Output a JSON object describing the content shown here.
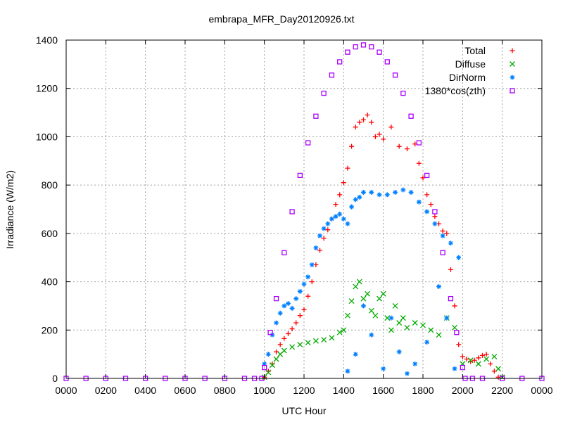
{
  "chart_data": {
    "type": "scatter",
    "title": "embrapa_MFR_Day20120926.txt",
    "xlabel": "UTC Hour",
    "ylabel": "Irradiance (W/m2)",
    "xlim": [
      0,
      24
    ],
    "ylim": [
      0,
      1400
    ],
    "x_ticks": [
      0,
      2,
      4,
      6,
      8,
      10,
      12,
      14,
      16,
      18,
      20,
      22,
      24
    ],
    "x_tick_labels": [
      "0000",
      "0200",
      "0400",
      "0600",
      "0800",
      "1000",
      "1200",
      "1400",
      "1600",
      "1800",
      "2000",
      "2200",
      "0000"
    ],
    "y_ticks": [
      0,
      200,
      400,
      600,
      800,
      1000,
      1200,
      1400
    ],
    "y_tick_labels": [
      "0",
      "200",
      "400",
      "600",
      "800",
      "1000",
      "1200",
      "1400"
    ],
    "grid": true,
    "legend_position": "top-right",
    "series": [
      {
        "name": "Total",
        "marker": "plus",
        "color": "#ff0000",
        "points": [
          [
            10.0,
            5
          ],
          [
            10.2,
            30
          ],
          [
            10.4,
            60
          ],
          [
            10.6,
            110
          ],
          [
            10.8,
            140
          ],
          [
            11.0,
            165
          ],
          [
            11.2,
            185
          ],
          [
            11.4,
            205
          ],
          [
            11.6,
            230
          ],
          [
            11.8,
            260
          ],
          [
            12.0,
            285
          ],
          [
            12.2,
            340
          ],
          [
            12.4,
            400
          ],
          [
            12.6,
            470
          ],
          [
            12.8,
            530
          ],
          [
            13.0,
            580
          ],
          [
            13.2,
            615
          ],
          [
            13.4,
            660
          ],
          [
            13.6,
            720
          ],
          [
            13.8,
            760
          ],
          [
            14.0,
            810
          ],
          [
            14.2,
            870
          ],
          [
            14.4,
            960
          ],
          [
            14.6,
            1040
          ],
          [
            14.8,
            1060
          ],
          [
            15.0,
            1070
          ],
          [
            15.2,
            1090
          ],
          [
            15.4,
            1060
          ],
          [
            15.6,
            1000
          ],
          [
            15.8,
            1010
          ],
          [
            16.0,
            990
          ],
          [
            16.4,
            1040
          ],
          [
            16.8,
            960
          ],
          [
            17.2,
            950
          ],
          [
            17.6,
            970
          ],
          [
            17.8,
            890
          ],
          [
            18.0,
            830
          ],
          [
            18.2,
            760
          ],
          [
            18.4,
            720
          ],
          [
            18.6,
            670
          ],
          [
            18.8,
            640
          ],
          [
            19.0,
            610
          ],
          [
            19.2,
            600
          ],
          [
            19.4,
            450
          ],
          [
            19.6,
            300
          ],
          [
            19.8,
            140
          ],
          [
            20.0,
            90
          ],
          [
            20.2,
            80
          ],
          [
            20.4,
            70
          ],
          [
            20.6,
            75
          ],
          [
            20.8,
            85
          ],
          [
            21.0,
            95
          ],
          [
            21.2,
            100
          ],
          [
            21.4,
            60
          ],
          [
            21.6,
            30
          ],
          [
            21.8,
            5
          ]
        ]
      },
      {
        "name": "Diffuse",
        "marker": "cross",
        "color": "#00aa00",
        "points": [
          [
            10.0,
            5
          ],
          [
            10.2,
            25
          ],
          [
            10.4,
            55
          ],
          [
            10.6,
            80
          ],
          [
            10.8,
            100
          ],
          [
            11.0,
            115
          ],
          [
            11.4,
            130
          ],
          [
            11.8,
            140
          ],
          [
            12.2,
            148
          ],
          [
            12.6,
            155
          ],
          [
            13.0,
            160
          ],
          [
            13.4,
            168
          ],
          [
            13.8,
            190
          ],
          [
            14.0,
            200
          ],
          [
            14.2,
            260
          ],
          [
            14.4,
            320
          ],
          [
            14.6,
            380
          ],
          [
            14.8,
            400
          ],
          [
            15.0,
            330
          ],
          [
            15.2,
            350
          ],
          [
            15.4,
            280
          ],
          [
            15.6,
            260
          ],
          [
            15.8,
            330
          ],
          [
            16.0,
            350
          ],
          [
            16.2,
            250
          ],
          [
            16.4,
            200
          ],
          [
            16.6,
            300
          ],
          [
            16.8,
            230
          ],
          [
            17.0,
            250
          ],
          [
            17.2,
            210
          ],
          [
            17.6,
            230
          ],
          [
            18.0,
            220
          ],
          [
            18.4,
            200
          ],
          [
            18.8,
            180
          ],
          [
            19.2,
            250
          ],
          [
            19.6,
            210
          ],
          [
            20.0,
            60
          ],
          [
            20.4,
            75
          ],
          [
            20.8,
            60
          ],
          [
            21.2,
            80
          ],
          [
            21.6,
            90
          ],
          [
            21.8,
            40
          ],
          [
            22.0,
            5
          ]
        ]
      },
      {
        "name": "DirNorm",
        "marker": "star",
        "color": "#0080ff",
        "points": [
          [
            10.0,
            60
          ],
          [
            10.2,
            100
          ],
          [
            10.4,
            180
          ],
          [
            10.6,
            230
          ],
          [
            10.8,
            270
          ],
          [
            11.0,
            300
          ],
          [
            11.2,
            310
          ],
          [
            11.4,
            290
          ],
          [
            11.6,
            330
          ],
          [
            11.8,
            360
          ],
          [
            12.0,
            390
          ],
          [
            12.2,
            420
          ],
          [
            12.4,
            470
          ],
          [
            12.6,
            540
          ],
          [
            12.8,
            590
          ],
          [
            13.0,
            620
          ],
          [
            13.2,
            640
          ],
          [
            13.4,
            660
          ],
          [
            13.6,
            670
          ],
          [
            13.8,
            680
          ],
          [
            14.0,
            660
          ],
          [
            14.2,
            640
          ],
          [
            14.4,
            710
          ],
          [
            14.6,
            740
          ],
          [
            14.8,
            750
          ],
          [
            15.0,
            770
          ],
          [
            15.4,
            770
          ],
          [
            15.8,
            760
          ],
          [
            16.2,
            760
          ],
          [
            16.6,
            770
          ],
          [
            17.0,
            780
          ],
          [
            17.4,
            770
          ],
          [
            17.8,
            730
          ],
          [
            18.2,
            690
          ],
          [
            18.6,
            640
          ],
          [
            19.0,
            590
          ],
          [
            19.4,
            560
          ],
          [
            19.8,
            500
          ],
          [
            14.2,
            30
          ],
          [
            14.6,
            100
          ],
          [
            15.0,
            300
          ],
          [
            15.4,
            180
          ],
          [
            16.0,
            40
          ],
          [
            16.4,
            250
          ],
          [
            16.8,
            110
          ],
          [
            17.2,
            20
          ],
          [
            17.6,
            60
          ],
          [
            18.2,
            150
          ],
          [
            18.8,
            380
          ],
          [
            19.2,
            250
          ],
          [
            19.6,
            40
          ]
        ]
      },
      {
        "name": "1380*cos(zth)",
        "marker": "square",
        "color": "#aa00ff",
        "points": [
          [
            0.0,
            0
          ],
          [
            1.0,
            0
          ],
          [
            2.0,
            0
          ],
          [
            3.0,
            0
          ],
          [
            4.0,
            0
          ],
          [
            5.0,
            0
          ],
          [
            6.0,
            0
          ],
          [
            7.0,
            0
          ],
          [
            8.0,
            0
          ],
          [
            9.0,
            0
          ],
          [
            9.5,
            0
          ],
          [
            9.87,
            0
          ],
          [
            10.0,
            45
          ],
          [
            10.3,
            190
          ],
          [
            10.6,
            330
          ],
          [
            11.0,
            520
          ],
          [
            11.4,
            690
          ],
          [
            11.8,
            840
          ],
          [
            12.2,
            975
          ],
          [
            12.6,
            1085
          ],
          [
            13.0,
            1180
          ],
          [
            13.4,
            1255
          ],
          [
            13.8,
            1310
          ],
          [
            14.2,
            1350
          ],
          [
            14.6,
            1372
          ],
          [
            15.0,
            1380
          ],
          [
            15.4,
            1372
          ],
          [
            15.8,
            1350
          ],
          [
            16.2,
            1310
          ],
          [
            16.6,
            1255
          ],
          [
            17.0,
            1180
          ],
          [
            17.4,
            1085
          ],
          [
            17.8,
            975
          ],
          [
            18.2,
            840
          ],
          [
            18.6,
            690
          ],
          [
            19.0,
            520
          ],
          [
            19.4,
            330
          ],
          [
            19.7,
            190
          ],
          [
            20.0,
            45
          ],
          [
            20.13,
            0
          ],
          [
            20.5,
            0
          ],
          [
            21.0,
            0
          ],
          [
            22.0,
            0
          ],
          [
            23.0,
            0
          ],
          [
            24.0,
            0
          ]
        ]
      }
    ]
  }
}
